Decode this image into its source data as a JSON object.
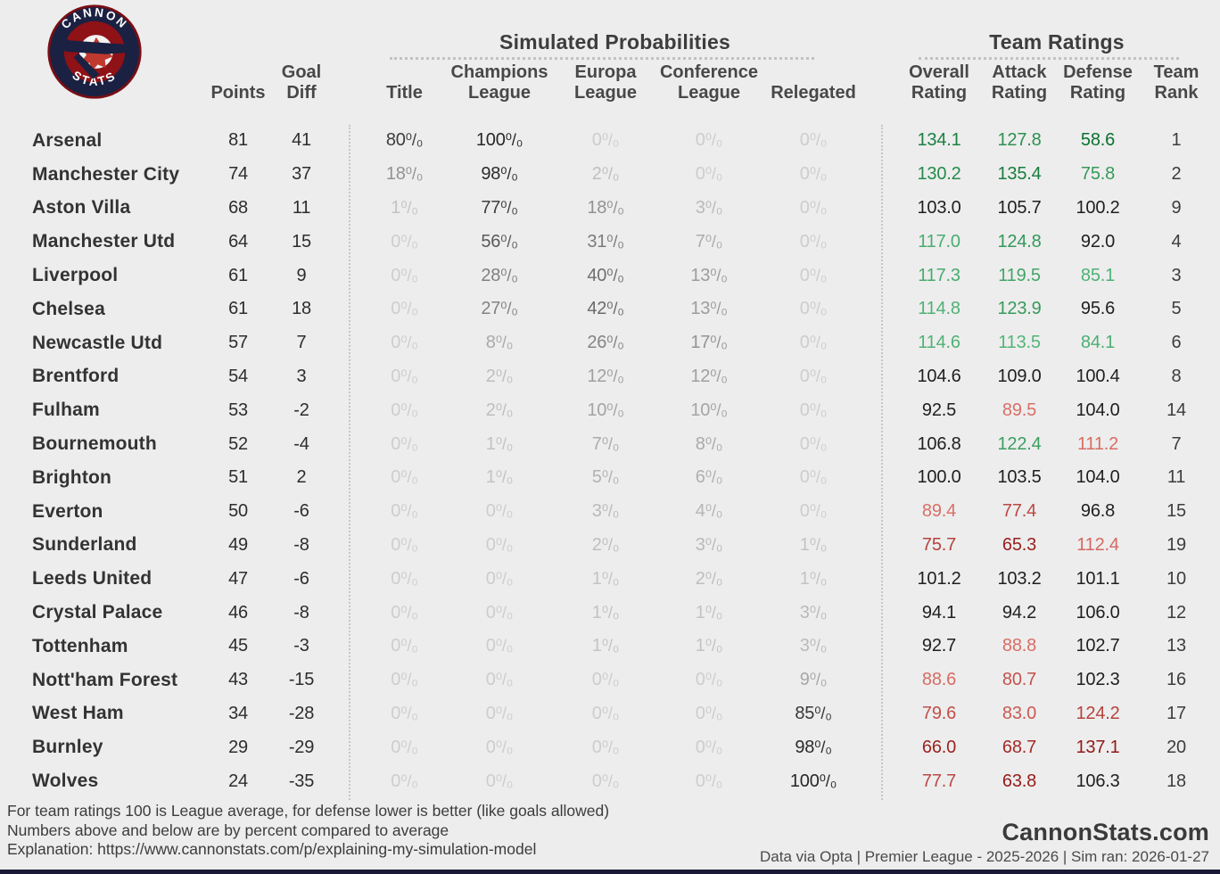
{
  "logo": {
    "top_text": "CANNON",
    "bottom_text": "STATS"
  },
  "sections": {
    "probabilities_title": "Simulated Probabilities",
    "ratings_title": "Team Ratings"
  },
  "headers": {
    "points": [
      "Points",
      ""
    ],
    "goal_diff": [
      "Goal",
      "Diff"
    ],
    "title": [
      "",
      "Title"
    ],
    "champions": [
      "Champions",
      "League"
    ],
    "europa": [
      "Europa",
      "League"
    ],
    "conference": [
      "Conference",
      "League"
    ],
    "relegated": [
      "",
      "Relegated"
    ],
    "overall": [
      "Overall",
      "Rating"
    ],
    "attack": [
      "Attack",
      "Rating"
    ],
    "defense": [
      "Defense",
      "Rating"
    ],
    "rank": [
      "Team",
      "Rank"
    ]
  },
  "chart_data": {
    "type": "table",
    "title": "Simulated Probabilities and Team Ratings",
    "columns": [
      "Team",
      "Points",
      "Goal Diff",
      "Title %",
      "Champions League %",
      "Europa League %",
      "Conference League %",
      "Relegated %",
      "Overall Rating",
      "Attack Rating",
      "Defense Rating",
      "Team Rank"
    ],
    "rows": [
      [
        "Arsenal",
        81,
        41,
        80,
        100,
        0,
        0,
        0,
        "134.1",
        "127.8",
        "58.6",
        1
      ],
      [
        "Manchester City",
        74,
        37,
        18,
        98,
        2,
        0,
        0,
        "130.2",
        "135.4",
        "75.8",
        2
      ],
      [
        "Aston Villa",
        68,
        11,
        1,
        77,
        18,
        3,
        0,
        "103.0",
        "105.7",
        "100.2",
        9
      ],
      [
        "Manchester Utd",
        64,
        15,
        0,
        56,
        31,
        7,
        0,
        "117.0",
        "124.8",
        "92.0",
        4
      ],
      [
        "Liverpool",
        61,
        9,
        0,
        28,
        40,
        13,
        0,
        "117.3",
        "119.5",
        "85.1",
        3
      ],
      [
        "Chelsea",
        61,
        18,
        0,
        27,
        42,
        13,
        0,
        "114.8",
        "123.9",
        "95.6",
        5
      ],
      [
        "Newcastle Utd",
        57,
        7,
        0,
        8,
        26,
        17,
        0,
        "114.6",
        "113.5",
        "84.1",
        6
      ],
      [
        "Brentford",
        54,
        3,
        0,
        2,
        12,
        12,
        0,
        "104.6",
        "109.0",
        "100.4",
        8
      ],
      [
        "Fulham",
        53,
        -2,
        0,
        2,
        10,
        10,
        0,
        "92.5",
        "89.5",
        "104.0",
        14
      ],
      [
        "Bournemouth",
        52,
        -4,
        0,
        1,
        7,
        8,
        0,
        "106.8",
        "122.4",
        "111.2",
        7
      ],
      [
        "Brighton",
        51,
        2,
        0,
        1,
        5,
        6,
        0,
        "100.0",
        "103.5",
        "104.0",
        11
      ],
      [
        "Everton",
        50,
        -6,
        0,
        0,
        3,
        4,
        0,
        "89.4",
        "77.4",
        "96.8",
        15
      ],
      [
        "Sunderland",
        49,
        -8,
        0,
        0,
        2,
        3,
        1,
        "75.7",
        "65.3",
        "112.4",
        19
      ],
      [
        "Leeds United",
        47,
        -6,
        0,
        0,
        1,
        2,
        1,
        "101.2",
        "103.2",
        "101.1",
        10
      ],
      [
        "Crystal Palace",
        46,
        -8,
        0,
        0,
        1,
        1,
        3,
        "94.1",
        "94.2",
        "106.0",
        12
      ],
      [
        "Tottenham",
        45,
        -3,
        0,
        0,
        1,
        1,
        3,
        "92.7",
        "88.8",
        "102.7",
        13
      ],
      [
        "Nott'ham Forest",
        43,
        -15,
        0,
        0,
        0,
        0,
        9,
        "88.6",
        "80.7",
        "102.3",
        16
      ],
      [
        "West Ham",
        34,
        -28,
        0,
        0,
        0,
        0,
        85,
        "79.6",
        "83.0",
        "124.2",
        17
      ],
      [
        "Burnley",
        29,
        -29,
        0,
        0,
        0,
        0,
        98,
        "66.0",
        "68.7",
        "137.1",
        20
      ],
      [
        "Wolves",
        24,
        -35,
        0,
        0,
        0,
        0,
        100,
        "77.7",
        "63.8",
        "106.3",
        18
      ]
    ]
  },
  "footer": {
    "lines": [
      "For team ratings 100 is League average, for defense lower is better (like goals allowed)",
      "Numbers above and below are by percent compared to average",
      "Explanation: https://www.cannonstats.com/p/explaining-my-simulation-model"
    ],
    "site": "CannonStats.com",
    "source": "Data via Opta | Premier League - 2025-2026 | Sim ran: 2026-01-27"
  },
  "colors": {
    "background": "#ededed",
    "good_light": "#5dbd82",
    "good_dark": "#0a7230",
    "bad_light": "#db7168",
    "bad_dark": "#8c0f0f",
    "neutral_text": "#1f1f1f",
    "logo_navy": "#1b2142",
    "logo_red": "#8e1216",
    "bottom_bar": "#1a1a38"
  }
}
